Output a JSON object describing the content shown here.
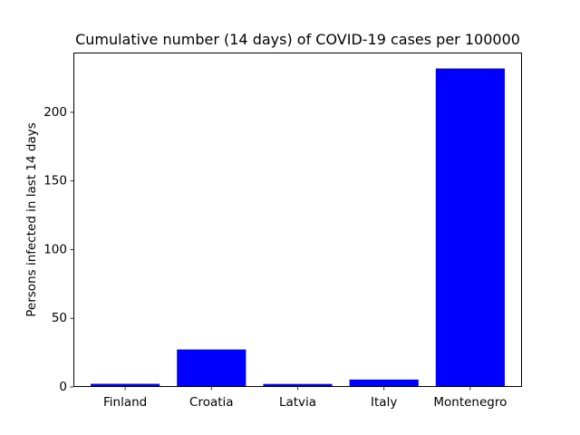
{
  "chart_data": {
    "type": "bar",
    "title": "Cumulative number (14 days) of COVID-19 cases per 100000",
    "xlabel": "",
    "ylabel": "Persons infected in last 14 days",
    "categories": [
      "Finland",
      "Croatia",
      "Latvia",
      "Italy",
      "Montenegro"
    ],
    "values": [
      2.3,
      27.3,
      2.2,
      5.4,
      231.9
    ],
    "ylim": [
      0,
      243.5
    ],
    "yticks": [
      0,
      50,
      100,
      150,
      200
    ],
    "grid": false,
    "legend": "none",
    "bar_color": "#0000ff"
  }
}
